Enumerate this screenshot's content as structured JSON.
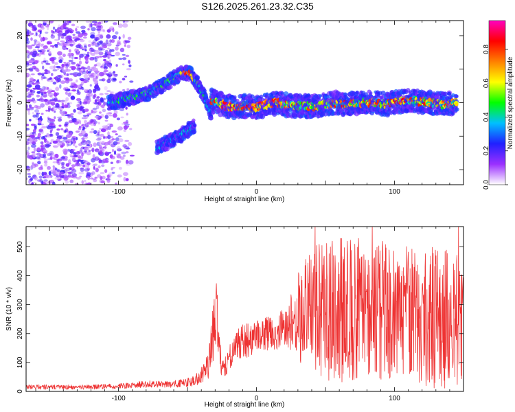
{
  "chart_data": [
    {
      "type": "heatmap",
      "title": "S126.2025.261.23.32.C35",
      "xlabel": "Height of straight line (km)",
      "ylabel": "Frequency (Hz)",
      "xlim": [
        -167,
        150
      ],
      "ylim": [
        -24.5,
        24.5
      ],
      "xticks": [
        -100,
        0,
        100
      ],
      "yticks": [
        -20,
        -10,
        0,
        10,
        20
      ],
      "colorbar": {
        "label": "Normalized spectral amplitude",
        "range": [
          0.0,
          0.97
        ],
        "ticks": [
          0.0,
          0.2,
          0.4,
          0.6,
          0.8
        ],
        "tick_labels": [
          "0.0",
          "0.2",
          "0.4",
          "0.6",
          "0.8"
        ],
        "colormap": [
          "#ffffff",
          "#9b30ff",
          "#2020ff",
          "#00c0ff",
          "#00ff00",
          "#ffff00",
          "#ff8000",
          "#ff0000",
          "#ff00c0"
        ]
      },
      "features": [
        {
          "name": "noise field",
          "x_range": [
            -167,
            -90
          ],
          "y_range": [
            -24.5,
            24.5
          ],
          "amplitude": 0.15
        },
        {
          "name": "upper branch",
          "x": [
            -107,
            -95,
            -85,
            -75,
            -65,
            -55,
            -48,
            -43,
            -38,
            -33
          ],
          "y": [
            0,
            1,
            2,
            3.5,
            6,
            8.5,
            9,
            6,
            2,
            -3
          ],
          "amplitude": 0.45
        },
        {
          "name": "lower branch",
          "x": [
            -72,
            -65,
            -58,
            -52,
            -45
          ],
          "y": [
            -13.5,
            -12,
            -10.5,
            -9,
            -7
          ],
          "amplitude": 0.35
        },
        {
          "name": "center branch",
          "x": [
            -33,
            -28,
            -22,
            -15,
            -8,
            0,
            8,
            15,
            25,
            35,
            45,
            55,
            65,
            75,
            85,
            95,
            105,
            115,
            125,
            135,
            145
          ],
          "y": [
            0.5,
            0,
            -1,
            -1.5,
            -1,
            -1.5,
            -0.5,
            0,
            -1,
            -1,
            -1,
            0,
            -0.5,
            0,
            0,
            -0.5,
            0.5,
            0.5,
            0,
            -0.5,
            0
          ],
          "amplitude": 0.75
        }
      ]
    },
    {
      "type": "line",
      "xlabel": "Height of straight line (km)",
      "ylabel": "SNR (10 * v/v)",
      "xlim": [
        -167,
        150
      ],
      "ylim": [
        0,
        570
      ],
      "xticks": [
        -100,
        0,
        100
      ],
      "yticks": [
        0,
        100,
        200,
        300,
        400,
        500
      ],
      "color": "#ee3333",
      "series": [
        {
          "name": "SNR envelope",
          "x": [
            -167,
            -140,
            -120,
            -100,
            -80,
            -60,
            -45,
            -40,
            -35,
            -31,
            -29,
            -27,
            -25,
            -22,
            -18,
            -12,
            -5,
            0,
            10,
            20,
            25,
            30,
            40,
            60,
            80,
            100,
            120,
            140,
            150
          ],
          "y": [
            15,
            15,
            15,
            18,
            25,
            25,
            35,
            55,
            90,
            200,
            300,
            140,
            80,
            90,
            150,
            170,
            180,
            190,
            200,
            220,
            240,
            260,
            280,
            280,
            285,
            270,
            260,
            250,
            240
          ],
          "spike_amplitude": [
            8,
            8,
            8,
            10,
            12,
            12,
            18,
            30,
            50,
            120,
            120,
            60,
            40,
            40,
            60,
            60,
            60,
            60,
            60,
            70,
            100,
            150,
            230,
            250,
            250,
            240,
            240,
            250,
            200
          ]
        }
      ]
    }
  ]
}
